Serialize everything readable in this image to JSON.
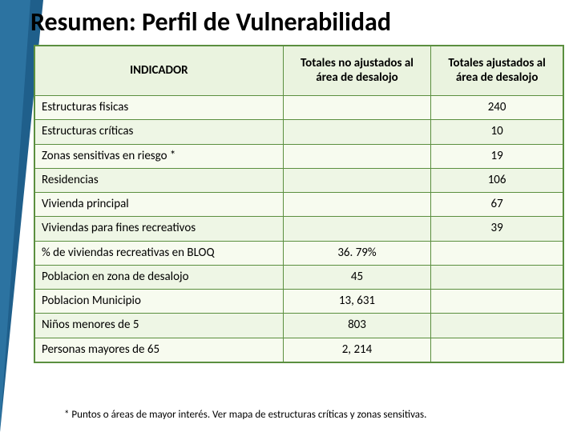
{
  "title": "Resumen: Perfil de Vulnerabilidad",
  "table": {
    "headers": {
      "indicador": "INDICADOR",
      "no_ajustados": "Totales no ajustados al área de desalojo",
      "ajustados": "Totales ajustados al área de desalojo"
    },
    "rows": [
      {
        "label": "Estructuras fisicas",
        "no_adj": "",
        "adj": "240"
      },
      {
        "label": "Estructuras críticas",
        "no_adj": "",
        "adj": "10"
      },
      {
        "label": "Zonas sensitivas en riesgo *",
        "no_adj": "",
        "adj": "19"
      },
      {
        "label": "Residencias",
        "no_adj": "",
        "adj": "106"
      },
      {
        "label": " Vivienda principal",
        "no_adj": "",
        "adj": "67"
      },
      {
        "label": " Viviendas para fines recreativos",
        "no_adj": "",
        "adj": "39"
      },
      {
        "label": " % de viviendas recreativas en BLOQ",
        "no_adj": "36. 79%",
        "adj": ""
      },
      {
        "label": "Poblacion en zona de desalojo",
        "no_adj": "45",
        "adj": ""
      },
      {
        "label": "Poblacion Municipio",
        "no_adj": "13, 631",
        "adj": ""
      },
      {
        "label": "Niños menores de 5",
        "no_adj": "803",
        "adj": ""
      },
      {
        "label": "Personas mayores de 65",
        "no_adj": "2, 214",
        "adj": ""
      }
    ],
    "header_bg": "#eaf3df",
    "row_bg_odd": "#f7fbef",
    "row_bg_even": "#eef6e5",
    "border_color": "#5b8f3f",
    "font_size_cells": 15,
    "font_size_header": 15
  },
  "footnote": "* Puntos o áreas de mayor interés. Ver mapa de estructuras críticas y zonas sensitivas.",
  "accent": {
    "primary": "#1f5f8b",
    "secondary": "#3a87b7"
  }
}
